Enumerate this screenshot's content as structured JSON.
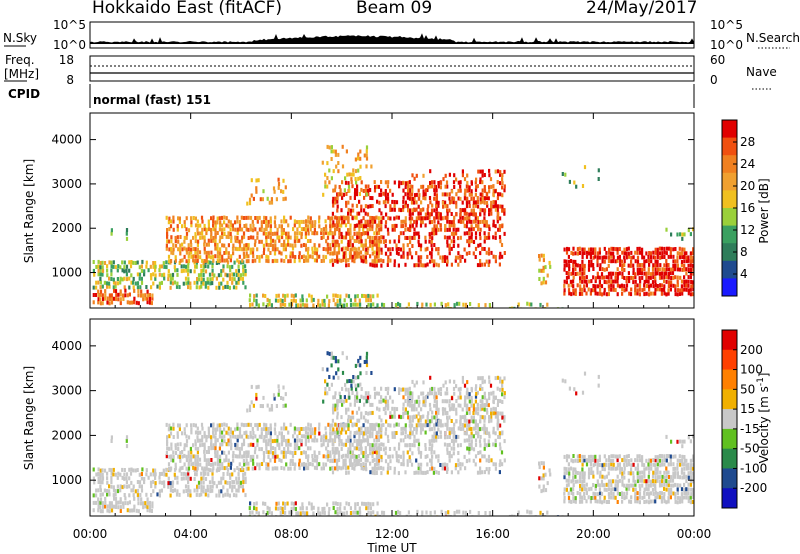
{
  "header": {
    "station": "Hokkaido East (fitACF)",
    "beam": "Beam 09",
    "date": "24/May/2017"
  },
  "panels": {
    "nsky": {
      "label": "N.Sky",
      "ticks_left": [
        "10^5",
        "10^0"
      ],
      "right_label": "N.Search",
      "ticks_right": [
        "10^5",
        "10^0"
      ]
    },
    "freq": {
      "label_line1": "Freq.",
      "label_line2": "[MHz]",
      "ticks_left": [
        "18",
        "8"
      ],
      "right_label": "Nave",
      "ticks_right": [
        "60",
        "0"
      ]
    },
    "cpid": {
      "label": "CPID",
      "mode_text": "normal (fast) 151"
    }
  },
  "colors": {
    "power_scale": [
      "#1a1aff",
      "#1f4a8f",
      "#2e7d5a",
      "#3aa060",
      "#9ad03a",
      "#f0c020",
      "#f0a030",
      "#f08020",
      "#f05010",
      "#e00000"
    ],
    "velocity_scale": [
      "#e00000",
      "#ff4000",
      "#ff8000",
      "#f0b000",
      "#c8c8c8",
      "#60c020",
      "#2a8a4a",
      "#1f4a8f",
      "#1010c0"
    ]
  },
  "chart_data": [
    {
      "type": "heatmap",
      "name": "power",
      "xlabel": "",
      "ylabel": "Slant Range [km]",
      "x_range_hours": [
        0,
        24
      ],
      "ylim": [
        200,
        4600
      ],
      "y_ticks": [
        1000,
        2000,
        3000,
        4000
      ],
      "x_tick_labels": [
        "00:00",
        "04:00",
        "08:00",
        "12:00",
        "16:00",
        "20:00",
        "00:00"
      ],
      "colorbar": {
        "label": "Power [dB]",
        "ticks": [
          "4",
          "8",
          "12",
          "16",
          "20",
          "24",
          "28"
        ]
      }
    },
    {
      "type": "heatmap",
      "name": "velocity",
      "xlabel": "Time UT",
      "ylabel": "Slant Range [km]",
      "x_range_hours": [
        0,
        24
      ],
      "ylim": [
        200,
        4600
      ],
      "y_ticks": [
        1000,
        2000,
        3000,
        4000
      ],
      "x_tick_labels": [
        "00:00",
        "04:00",
        "08:00",
        "12:00",
        "16:00",
        "20:00",
        "00:00"
      ],
      "colorbar": {
        "label": "Velocity [m s",
        "label_sup": "-1",
        "ticks": [
          "200",
          "100",
          "50",
          "15",
          "-15",
          "-50",
          "-100",
          "-200"
        ]
      }
    }
  ]
}
